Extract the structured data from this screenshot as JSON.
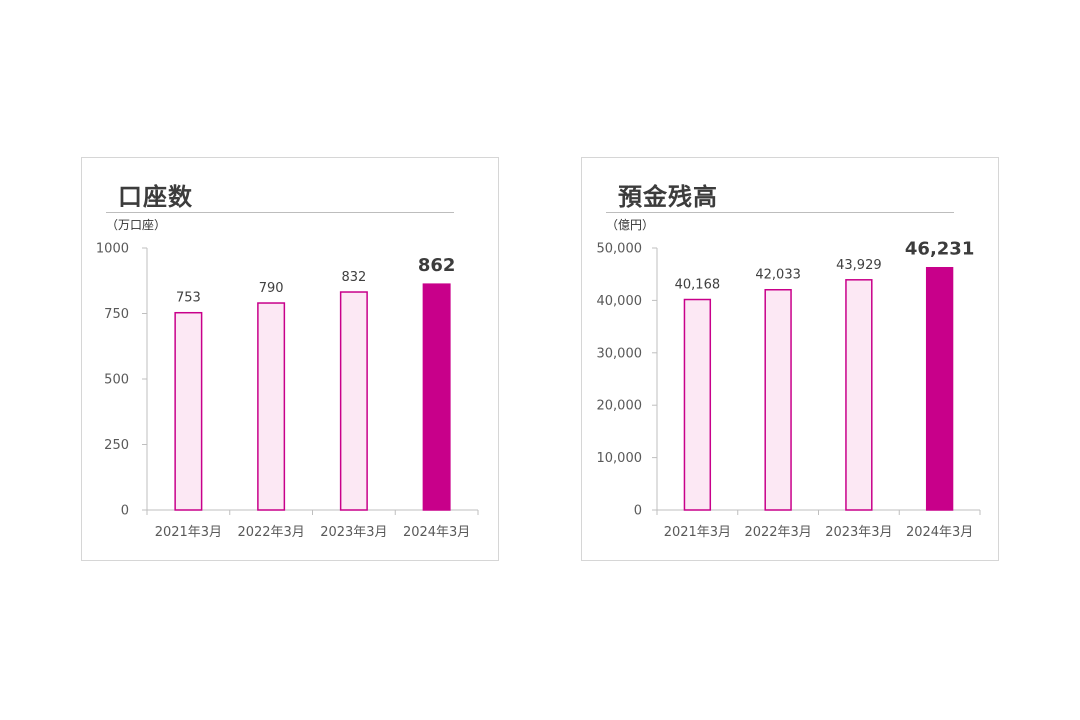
{
  "chart_data": [
    {
      "type": "bar",
      "title": "口座数",
      "unit": "（万口座）",
      "categories": [
        "2021年3月",
        "2022年3月",
        "2023年3月",
        "2024年3月"
      ],
      "values": [
        753,
        790,
        832,
        862
      ],
      "value_labels": [
        "753",
        "790",
        "832",
        "862"
      ],
      "ylim": [
        0,
        1000
      ],
      "yticks": [
        0,
        250,
        500,
        750,
        1000
      ],
      "ytick_labels": [
        "0",
        "250",
        "500",
        "750",
        "1000"
      ],
      "highlight_index": 3,
      "grid": false,
      "legend": "none"
    },
    {
      "type": "bar",
      "title": "預金残高",
      "unit": "（億円）",
      "categories": [
        "2021年3月",
        "2022年3月",
        "2023年3月",
        "2024年3月"
      ],
      "values": [
        40168,
        42033,
        43929,
        46231
      ],
      "value_labels": [
        "40,168",
        "42,033",
        "43,929",
        "46,231"
      ],
      "ylim": [
        0,
        50000
      ],
      "yticks": [
        0,
        10000,
        20000,
        30000,
        40000,
        50000
      ],
      "ytick_labels": [
        "0",
        "10,000",
        "20,000",
        "30,000",
        "40,000",
        "50,000"
      ],
      "highlight_index": 3,
      "grid": false,
      "legend": "none"
    }
  ],
  "colors": {
    "bar_fill": "#fce8f4",
    "bar_stroke": "#c8008a",
    "highlight_fill": "#c8008a",
    "axis": "#bfbfbf"
  }
}
